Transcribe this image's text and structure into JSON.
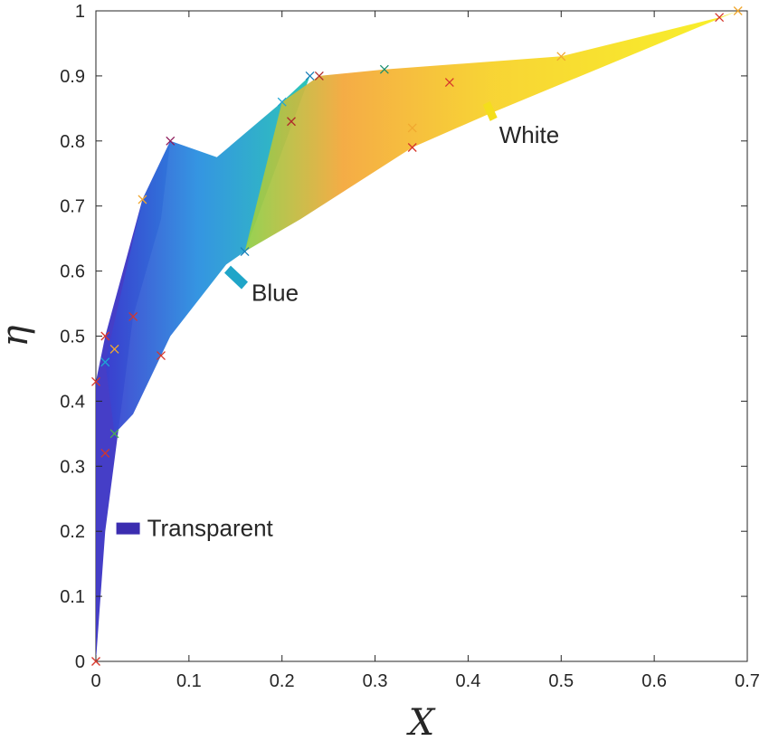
{
  "chart_data": {
    "type": "scatter",
    "xlabel": "X",
    "ylabel": "η",
    "xlim": [
      0,
      0.7
    ],
    "ylim": [
      0,
      1
    ],
    "xticks": [
      0,
      0.1,
      0.2,
      0.3,
      0.4,
      0.5,
      0.6,
      0.7
    ],
    "yticks": [
      0,
      0.1,
      0.2,
      0.3,
      0.4,
      0.5,
      0.6,
      0.7,
      0.8,
      0.9,
      1
    ],
    "grid": false,
    "regions": [
      {
        "label": "Transparent",
        "color": "#3b2db0",
        "polygon": [
          [
            0,
            0
          ],
          [
            0,
            0.43
          ],
          [
            0.01,
            0.5
          ],
          [
            0.05,
            0.71
          ],
          [
            0.08,
            0.8
          ],
          [
            0.07,
            0.68
          ],
          [
            0.04,
            0.53
          ],
          [
            0.03,
            0.42
          ],
          [
            0.01,
            0.2
          ],
          [
            0,
            0
          ]
        ]
      },
      {
        "label": "Blue",
        "color": "#1fa5d4",
        "polygon": [
          [
            0.01,
            0.46
          ],
          [
            0.05,
            0.71
          ],
          [
            0.08,
            0.8
          ],
          [
            0.13,
            0.775
          ],
          [
            0.2,
            0.86
          ],
          [
            0.23,
            0.9
          ],
          [
            0.16,
            0.63
          ],
          [
            0.14,
            0.61
          ],
          [
            0.08,
            0.5
          ],
          [
            0.04,
            0.38
          ],
          [
            0.02,
            0.35
          ],
          [
            0.01,
            0.46
          ]
        ]
      },
      {
        "label": "White",
        "color": "#f6e81e",
        "polygon": [
          [
            0.16,
            0.63
          ],
          [
            0.2,
            0.86
          ],
          [
            0.24,
            0.9
          ],
          [
            0.31,
            0.91
          ],
          [
            0.5,
            0.93
          ],
          [
            0.67,
            0.99
          ],
          [
            0.69,
            1
          ],
          [
            0.42,
            0.84
          ],
          [
            0.34,
            0.79
          ],
          [
            0.22,
            0.68
          ],
          [
            0.16,
            0.63
          ]
        ]
      }
    ],
    "region_label_anchors": [
      {
        "label": "Transparent",
        "x": 0.02,
        "y": 0.205
      },
      {
        "label": "Blue",
        "x": 0.14,
        "y": 0.6
      },
      {
        "label": "White",
        "x": 0.41,
        "y": 0.85
      }
    ],
    "points": [
      {
        "x": 0.0,
        "y": 0.0,
        "color": "#d6362a"
      },
      {
        "x": 0.0,
        "y": 0.43,
        "color": "#d6362a"
      },
      {
        "x": 0.01,
        "y": 0.46,
        "color": "#1fa5d4"
      },
      {
        "x": 0.01,
        "y": 0.5,
        "color": "#d6362a"
      },
      {
        "x": 0.02,
        "y": 0.48,
        "color": "#f0a830"
      },
      {
        "x": 0.01,
        "y": 0.32,
        "color": "#d6362a"
      },
      {
        "x": 0.02,
        "y": 0.35,
        "color": "#4caf50"
      },
      {
        "x": 0.04,
        "y": 0.53,
        "color": "#d6362a"
      },
      {
        "x": 0.05,
        "y": 0.71,
        "color": "#f0a830"
      },
      {
        "x": 0.07,
        "y": 0.47,
        "color": "#d6362a"
      },
      {
        "x": 0.08,
        "y": 0.8,
        "color": "#8e1a5a"
      },
      {
        "x": 0.16,
        "y": 0.63,
        "color": "#1a7fb8"
      },
      {
        "x": 0.2,
        "y": 0.86,
        "color": "#1fa5d4"
      },
      {
        "x": 0.21,
        "y": 0.83,
        "color": "#b02a2a"
      },
      {
        "x": 0.23,
        "y": 0.9,
        "color": "#1a7fb8"
      },
      {
        "x": 0.24,
        "y": 0.9,
        "color": "#b02a2a"
      },
      {
        "x": 0.31,
        "y": 0.91,
        "color": "#1a8f6e"
      },
      {
        "x": 0.34,
        "y": 0.82,
        "color": "#f0a830"
      },
      {
        "x": 0.34,
        "y": 0.79,
        "color": "#d6362a"
      },
      {
        "x": 0.38,
        "y": 0.89,
        "color": "#d6362a"
      },
      {
        "x": 0.5,
        "y": 0.93,
        "color": "#f0a830"
      },
      {
        "x": 0.67,
        "y": 0.99,
        "color": "#d6362a"
      },
      {
        "x": 0.69,
        "y": 1.0,
        "color": "#f0a830"
      }
    ]
  }
}
